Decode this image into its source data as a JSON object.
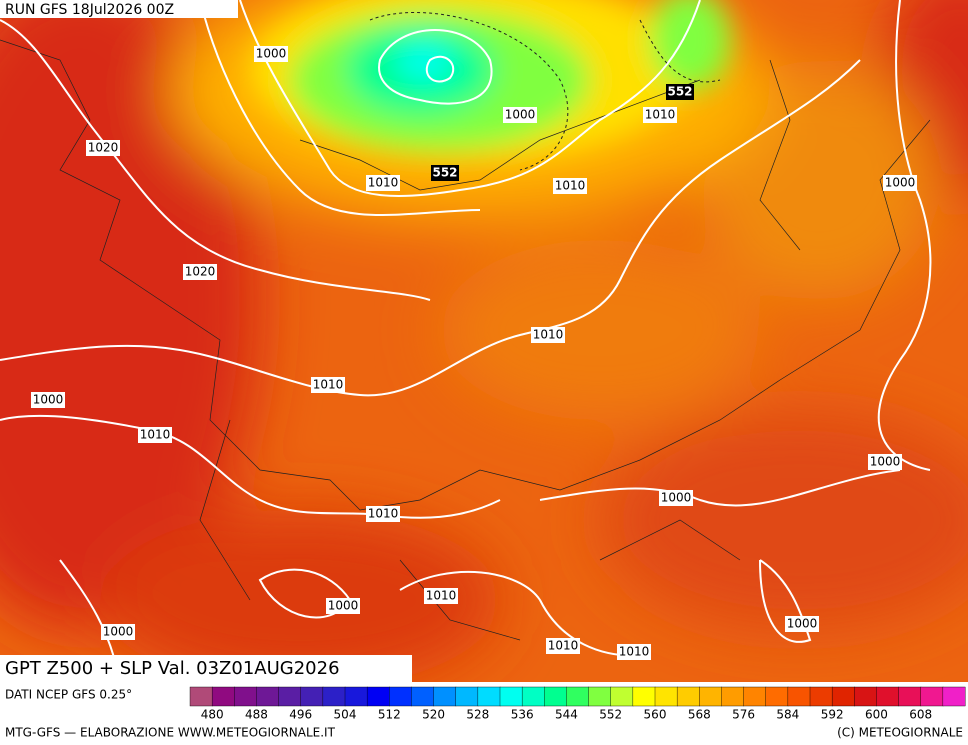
{
  "header": {
    "run": "RUN GFS 18Jul2026 00Z"
  },
  "title": "GPT Z500 + SLP Val. 03Z01AUG2026",
  "source": "DATI NCEP GFS 0.25°",
  "footer": {
    "left": "MTG-GFS — ELABORAZIONE WWW.METEOGIORNALE.IT",
    "right": "(C) METEOGIORNALE"
  },
  "colorbar": {
    "ticks": [
      480,
      488,
      496,
      504,
      512,
      520,
      528,
      536,
      544,
      552,
      560,
      568,
      576,
      584,
      592,
      600,
      608
    ],
    "colors": [
      "#b04a78",
      "#900a80",
      "#80108c",
      "#6e1896",
      "#5a1ea4",
      "#4420b4",
      "#2c20c8",
      "#1818dc",
      "#0000f4",
      "#0030ff",
      "#0060ff",
      "#0090ff",
      "#00b8ff",
      "#00dcff",
      "#00fff0",
      "#00ffc4",
      "#00ff90",
      "#30ff60",
      "#80ff40",
      "#c0ff30",
      "#ffff00",
      "#ffe400",
      "#ffcc00",
      "#ffb400",
      "#ff9c00",
      "#ff8400",
      "#ff6c00",
      "#f85400",
      "#ec3c00",
      "#e02400",
      "#d81414",
      "#e0102c",
      "#e81058",
      "#f01890",
      "#f020c8"
    ]
  },
  "isobar_labels": [
    1000,
    1020,
    1010,
    1000,
    1010,
    1010,
    1000,
    1020,
    1010,
    1010,
    1000,
    1010,
    1000,
    1000,
    1010,
    1010,
    1000,
    1000,
    1000,
    1010,
    1010
  ],
  "z500_labels": [
    552,
    552
  ]
}
